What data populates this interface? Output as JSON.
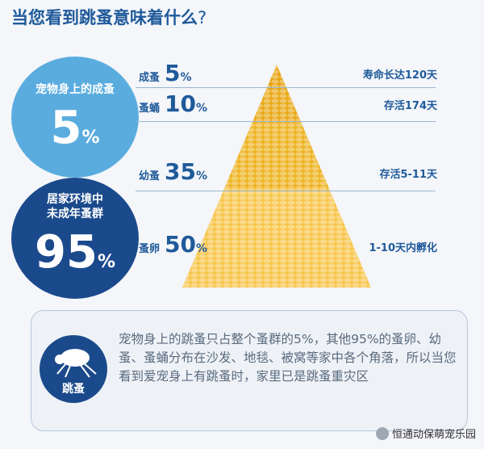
{
  "title": "当您看到跳蚤意味着什么",
  "title_mark": "?",
  "circle_pet": {
    "label": "宠物身上的成蚤",
    "value": "5",
    "unit": "%"
  },
  "circle_home": {
    "label_line1": "居家环境中",
    "label_line2": "未成年蚤群",
    "value": "95",
    "unit": "%"
  },
  "stages": [
    {
      "name": "成蚤",
      "percent": "5",
      "unit": "%",
      "note": "寿命长达120天"
    },
    {
      "name": "蚤蛹",
      "percent": "10",
      "unit": "%",
      "note": "存活174天"
    },
    {
      "name": "幼蚤",
      "percent": "35",
      "unit": "%",
      "note": "存活5-11天"
    },
    {
      "name": "蚤卵",
      "percent": "50",
      "unit": "%",
      "note": "1-10天内孵化"
    }
  ],
  "pyramid_shares": [
    0.05,
    0.1,
    0.35,
    0.5
  ],
  "info": {
    "icon_label": "跳蚤",
    "text": "宠物身上的跳蚤只占整个蚤群的5%，其他95%的蚤卵、幼蚤、蚤蛹分布在沙发、地毯、被窝等家中各个角落，所以当您看到爱宠身上有跳蚤时，家里已是跳蚤重灾区"
  },
  "watermark": "恒通动保萌宠乐园",
  "colors": {
    "dark_blue": "#1b4a8c",
    "light_blue": "#5aacde",
    "gold_dark": "#e8a414",
    "gold_light": "#f7c64c"
  }
}
